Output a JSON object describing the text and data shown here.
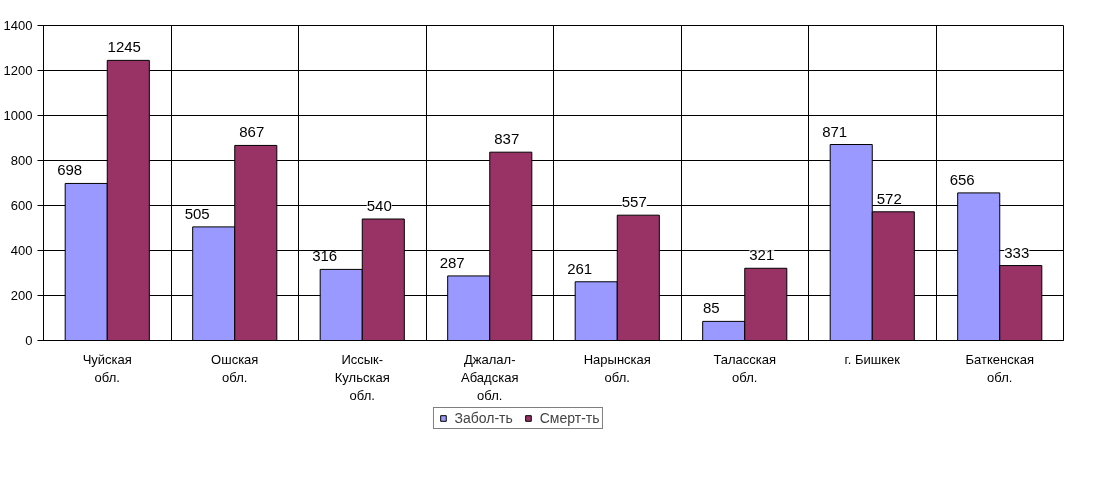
{
  "chart_data": {
    "type": "bar",
    "categories": [
      "Чуйская\nобл.",
      "Ошская\nобл.",
      "Иссык-\nКульская\nобл.",
      "Джалал-\nАбадская\nобл.",
      "Нарынская\nобл.",
      "Таласская\nобл.",
      "г. Бишкек",
      "Баткенская\nобл."
    ],
    "series": [
      {
        "name": "Забол-ть",
        "color": "#9999ff",
        "values": [
          698,
          505,
          316,
          287,
          261,
          85,
          871,
          656
        ]
      },
      {
        "name": "Смерт-ть",
        "color": "#993366",
        "values": [
          1245,
          867,
          540,
          837,
          557,
          321,
          572,
          333
        ]
      }
    ],
    "ylim": [
      0,
      1400
    ],
    "yticks": [
      0,
      200,
      400,
      600,
      800,
      1000,
      1200,
      1400
    ],
    "grid": true,
    "legend": "bottom",
    "data_labels": true
  }
}
